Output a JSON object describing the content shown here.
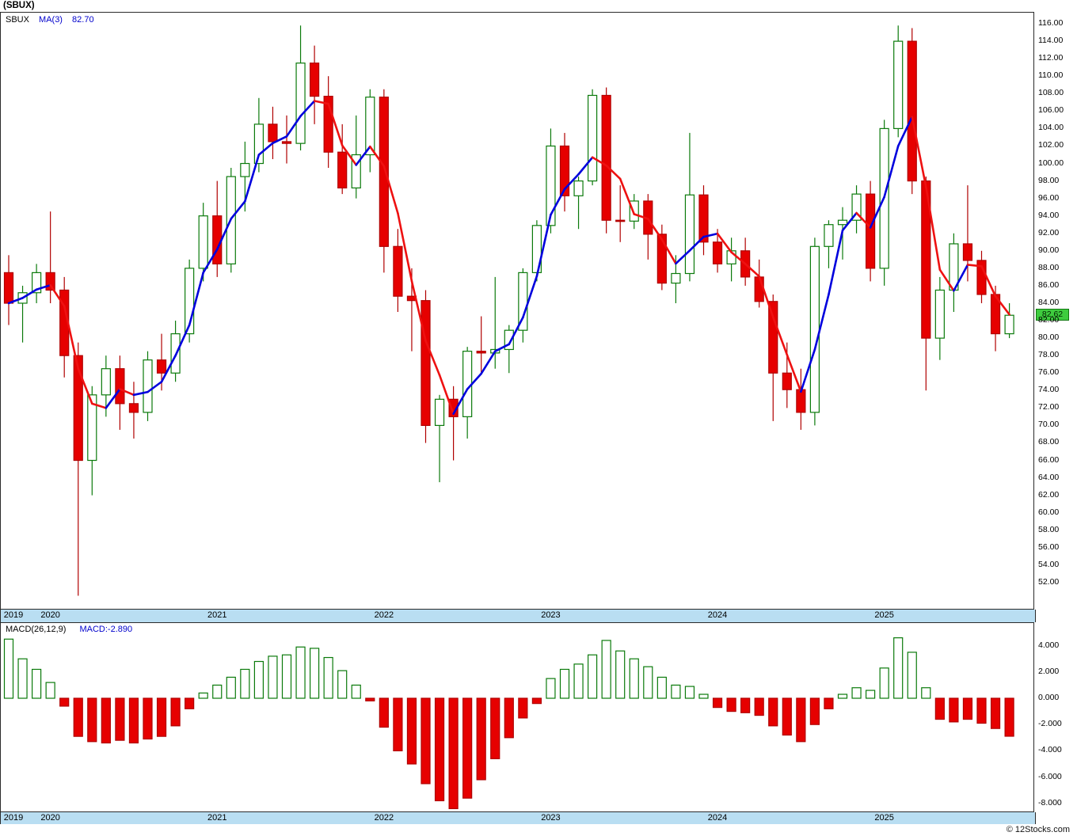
{
  "window": {
    "title": "(SBUX)"
  },
  "price_panel": {
    "legend": {
      "symbol": "SBUX",
      "ma_label": "MA(3)",
      "ma_value": "82.70"
    },
    "last_price_badge": "82.62",
    "axis_labels": [
      "116.00",
      "114.00",
      "112.00",
      "110.00",
      "108.00",
      "106.00",
      "104.00",
      "102.00",
      "100.00",
      "98.00",
      "96.00",
      "94.00",
      "92.00",
      "90.00",
      "88.00",
      "86.00",
      "84.00",
      "82.00",
      "80.00",
      "78.00",
      "76.00",
      "74.00",
      "72.00",
      "70.00",
      "68.00",
      "66.00",
      "64.00",
      "62.00",
      "60.00",
      "58.00",
      "56.00",
      "54.00",
      "52.00"
    ]
  },
  "macd_panel": {
    "indicator_label": "MACD(26,12,9)",
    "value_label": "MACD:-2.890",
    "axis_labels": [
      "4.000",
      "2.000",
      "0.000",
      "-2.000",
      "-4.000",
      "-6.000",
      "-8.000"
    ]
  },
  "timeline": {
    "years": [
      "2019",
      "2020",
      "2021",
      "2022",
      "2023",
      "2024",
      "2025"
    ]
  },
  "footer": {
    "copyright": "© 12Stocks.com"
  },
  "colors": {
    "up": "#0b7a0b",
    "up_fill": "#ffffff",
    "down": "#e60000",
    "down_edge": "#b00000",
    "ma_up": "#0000dd",
    "ma_down": "#ee1111",
    "strip": "#b9def2",
    "badge_bg": "#3ecc3e"
  },
  "chart_data": [
    {
      "type": "candlestick",
      "title": "SBUX monthly candles",
      "timeframe": "monthly",
      "ylim": [
        49,
        117
      ],
      "y_tick_step": 2,
      "x": [
        "2019-10",
        "2019-11",
        "2019-12",
        "2020-01",
        "2020-02",
        "2020-03",
        "2020-04",
        "2020-05",
        "2020-06",
        "2020-07",
        "2020-08",
        "2020-09",
        "2020-10",
        "2020-11",
        "2020-12",
        "2021-01",
        "2021-02",
        "2021-03",
        "2021-04",
        "2021-05",
        "2021-06",
        "2021-07",
        "2021-08",
        "2021-09",
        "2021-10",
        "2021-11",
        "2021-12",
        "2022-01",
        "2022-02",
        "2022-03",
        "2022-04",
        "2022-05",
        "2022-06",
        "2022-07",
        "2022-08",
        "2022-09",
        "2022-10",
        "2022-11",
        "2022-12",
        "2023-01",
        "2023-02",
        "2023-03",
        "2023-04",
        "2023-05",
        "2023-06",
        "2023-07",
        "2023-08",
        "2023-09",
        "2023-10",
        "2023-11",
        "2023-12",
        "2024-01",
        "2024-02",
        "2024-03",
        "2024-04",
        "2024-05",
        "2024-06",
        "2024-07",
        "2024-08",
        "2024-09",
        "2024-10",
        "2024-11",
        "2024-12",
        "2025-01",
        "2025-02",
        "2025-03",
        "2025-04",
        "2025-05",
        "2025-06",
        "2025-07",
        "2025-08",
        "2025-09",
        "2025-10"
      ],
      "open": [
        87.5,
        84.0,
        85.2,
        87.5,
        85.5,
        78.0,
        66.0,
        73.5,
        76.5,
        72.5,
        71.5,
        77.5,
        76.0,
        80.5,
        88.0,
        94.0,
        88.5,
        98.5,
        100.0,
        104.5,
        102.5,
        102.3,
        111.5,
        107.7,
        101.3,
        97.2,
        101.0,
        107.6,
        90.5,
        84.8,
        84.3,
        70.0,
        73.0,
        71.0,
        78.5,
        78.3,
        78.7,
        80.9,
        87.5,
        92.9,
        102.0,
        96.3,
        98.0,
        107.8,
        93.5,
        93.4,
        95.7,
        91.9,
        86.3,
        87.4,
        96.4,
        91.0,
        88.5,
        90.0,
        87.0,
        84.2,
        76.0,
        74.1,
        71.5,
        90.5,
        93.0,
        93.5,
        96.5,
        88.0,
        104.0,
        114.0,
        98.0,
        80.0,
        85.5,
        90.8,
        88.9,
        85.0,
        80.5
      ],
      "high": [
        89.5,
        86.0,
        88.5,
        94.5,
        87.0,
        79.5,
        74.5,
        78.0,
        78.0,
        75.0,
        78.5,
        80.5,
        82.0,
        89.0,
        95.5,
        98.0,
        99.5,
        102.5,
        107.5,
        106.5,
        105.5,
        115.8,
        113.5,
        110.0,
        104.5,
        105.5,
        108.5,
        108.5,
        92.5,
        88.0,
        85.5,
        73.5,
        74.5,
        79.0,
        82.5,
        87.0,
        81.5,
        88.0,
        93.5,
        104.0,
        103.5,
        98.5,
        108.5,
        108.7,
        97.5,
        96.5,
        96.5,
        93.0,
        89.5,
        103.5,
        97.5,
        92.5,
        91.5,
        91.5,
        89.0,
        85.0,
        79.5,
        76.5,
        91.5,
        93.5,
        95.0,
        97.5,
        98.0,
        105.0,
        115.8,
        115.5,
        98.5,
        87.0,
        92.0,
        97.5,
        90.0,
        86.0,
        84.0
      ],
      "low": [
        81.5,
        79.5,
        84.0,
        84.0,
        75.5,
        50.5,
        62.0,
        71.0,
        69.5,
        68.5,
        70.5,
        74.0,
        75.0,
        79.5,
        86.5,
        87.0,
        87.5,
        94.5,
        99.0,
        100.5,
        100.0,
        101.5,
        104.5,
        99.5,
        96.5,
        96.0,
        99.0,
        87.5,
        83.0,
        78.5,
        68.0,
        63.5,
        66.0,
        68.5,
        76.0,
        76.5,
        76.0,
        79.5,
        86.5,
        92.0,
        94.5,
        92.5,
        97.5,
        92.0,
        91.0,
        92.5,
        89.0,
        85.5,
        84.0,
        86.5,
        89.5,
        87.5,
        86.5,
        86.0,
        83.5,
        70.5,
        72.0,
        69.5,
        70.0,
        88.0,
        89.0,
        92.0,
        86.5,
        86.0,
        103.0,
        96.5,
        74.0,
        77.5,
        83.0,
        86.5,
        84.0,
        78.5,
        80.0
      ],
      "close": [
        84.0,
        85.2,
        87.5,
        85.5,
        78.0,
        66.0,
        73.5,
        76.5,
        72.5,
        71.5,
        77.5,
        76.0,
        80.5,
        88.0,
        94.0,
        88.5,
        98.5,
        100.0,
        104.5,
        102.5,
        102.3,
        111.5,
        107.7,
        101.3,
        97.2,
        101.0,
        107.6,
        90.5,
        84.8,
        84.3,
        70.0,
        73.0,
        71.0,
        78.5,
        78.3,
        78.7,
        80.9,
        87.5,
        92.9,
        102.0,
        96.3,
        98.0,
        107.8,
        93.5,
        93.4,
        95.7,
        91.9,
        86.3,
        87.4,
        96.4,
        91.0,
        88.5,
        90.0,
        87.0,
        84.2,
        76.0,
        74.1,
        71.5,
        90.5,
        93.0,
        93.5,
        96.5,
        88.0,
        104.0,
        114.0,
        98.0,
        80.0,
        85.5,
        90.8,
        88.9,
        85.0,
        80.5,
        82.62
      ],
      "last_close": 82.62,
      "overlays": [
        {
          "name": "MA(3)",
          "window": 3,
          "last_value": 82.7,
          "coloring": "blue-when-rising-red-when-falling"
        }
      ],
      "legend_position": "top-left",
      "grid": false
    },
    {
      "type": "bar",
      "title": "MACD(26,12,9) histogram",
      "last_value": -2.89,
      "ylim": [
        -9,
        5
      ],
      "y_ticks": [
        4,
        2,
        0,
        -2,
        -4,
        -6,
        -8
      ],
      "values": [
        4.5,
        3.0,
        2.2,
        1.2,
        -0.6,
        -2.9,
        -3.3,
        -3.4,
        -3.2,
        -3.4,
        -3.1,
        -2.9,
        -2.1,
        -0.8,
        0.4,
        1.0,
        1.6,
        2.2,
        2.8,
        3.2,
        3.3,
        3.9,
        3.8,
        3.1,
        2.1,
        1.0,
        -0.2,
        -2.2,
        -4.0,
        -5.0,
        -6.5,
        -7.8,
        -8.4,
        -7.6,
        -6.2,
        -4.6,
        -3.0,
        -1.5,
        -0.4,
        1.5,
        2.2,
        2.6,
        3.3,
        4.4,
        3.6,
        3.0,
        2.4,
        1.6,
        1.0,
        0.9,
        0.3,
        -0.7,
        -1.0,
        -1.1,
        -1.3,
        -2.1,
        -2.8,
        -3.3,
        -2.0,
        -0.8,
        0.3,
        0.8,
        0.6,
        2.3,
        4.6,
        3.5,
        0.8,
        -1.6,
        -1.8,
        -1.6,
        -1.9,
        -2.3,
        -2.89
      ],
      "positive_style": "hollow-green",
      "negative_style": "solid-red",
      "grid": false
    }
  ]
}
